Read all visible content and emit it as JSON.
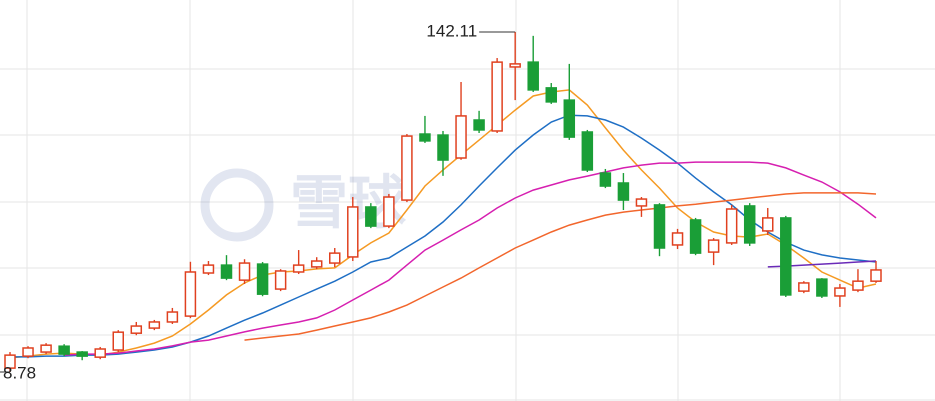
{
  "chart_data": {
    "type": "candlestick",
    "high_label": "142.11",
    "low_label": "8.78",
    "watermark": "雪球",
    "up_color": "#e0401f",
    "down_color": "#1a9e37",
    "open": [
      10.3,
      15.0,
      16.6,
      18.9,
      16.6,
      14.6,
      17.4,
      24.0,
      26.0,
      28.4,
      30.7,
      47.6,
      50.7,
      44.8,
      51.1,
      41.3,
      48.0,
      50.0,
      51.5,
      53.9,
      73.5,
      66.0,
      76.2,
      102.1,
      101.7,
      92.7,
      107.6,
      103.3,
      128.4,
      130.3,
      120.2,
      115.4,
      102.9,
      86.8,
      82.9,
      73.9,
      74.3,
      58.6,
      68.4,
      55.8,
      59.4,
      73.9,
      64.1,
      69.2,
      40.5,
      45.2,
      38.6,
      40.9,
      44.4
    ],
    "close": [
      15.4,
      18.2,
      19.3,
      15.8,
      15.0,
      17.8,
      24.4,
      26.8,
      28.4,
      32.3,
      48.0,
      50.7,
      45.6,
      51.5,
      39.3,
      48.4,
      50.7,
      52.3,
      55.4,
      73.5,
      66.0,
      77.4,
      101.3,
      99.4,
      91.9,
      109.2,
      103.7,
      130.3,
      129.6,
      119.4,
      114.7,
      100.9,
      88.0,
      81.7,
      76.2,
      76.6,
      57.4,
      63.3,
      55.4,
      60.5,
      72.7,
      59.4,
      69.2,
      39.0,
      43.7,
      38.6,
      41.7,
      44.4,
      48.8
    ],
    "high": [
      16.6,
      18.9,
      20.1,
      19.7,
      17.0,
      18.6,
      25.2,
      28.4,
      29.2,
      33.9,
      52.0,
      52.3,
      54.6,
      53.0,
      51.9,
      49.1,
      56.6,
      53.8,
      57.4,
      77.4,
      75.0,
      78.6,
      102.1,
      109.2,
      103.3,
      122.5,
      111.2,
      131.9,
      142.11,
      140.6,
      122.1,
      129.6,
      103.7,
      88.4,
      86.8,
      77.4,
      75.0,
      64.9,
      69.2,
      61.3,
      74.3,
      75.0,
      73.1,
      70.0,
      44.4,
      45.6,
      43.3,
      49.1,
      52.3
    ],
    "low": [
      8.78,
      14.2,
      15.8,
      15.0,
      13.4,
      13.8,
      16.6,
      23.2,
      25.2,
      27.6,
      29.9,
      46.8,
      44.8,
      43.3,
      38.5,
      40.5,
      47.2,
      49.1,
      49.9,
      52.3,
      65.2,
      65.2,
      75.4,
      98.6,
      85.7,
      92.0,
      102.5,
      102.5,
      115.4,
      118.6,
      113.9,
      99.8,
      87.2,
      80.9,
      72.3,
      69.6,
      54.2,
      57.0,
      54.6,
      50.7,
      58.6,
      58.2,
      62.5,
      38.2,
      39.7,
      37.8,
      34.3,
      40.1,
      43.7
    ],
    "series": [
      {
        "color": "#f59a23",
        "values": [
          14.3,
          15.0,
          15.8,
          16.2,
          15.8,
          15.4,
          16.6,
          18.2,
          20.1,
          22.9,
          27.6,
          33.1,
          39.0,
          43.7,
          46.8,
          48.0,
          48.4,
          49.2,
          49.6,
          54.7,
          59.4,
          63.3,
          72.3,
          81.7,
          88.0,
          93.9,
          99.7,
          105.6,
          111.5,
          117.0,
          118.6,
          119.4,
          113.5,
          104.5,
          95.8,
          88.0,
          80.9,
          73.1,
          67.6,
          63.7,
          62.1,
          61.7,
          62.9,
          58.6,
          53.5,
          48.0,
          44.8,
          41.7,
          43.3
        ]
      },
      {
        "color": "#1f6fc5",
        "values": [
          14.7,
          14.7,
          15.0,
          15.0,
          15.4,
          15.4,
          15.8,
          16.6,
          17.4,
          18.6,
          20.5,
          22.9,
          26.0,
          29.1,
          31.9,
          35.0,
          38.2,
          41.3,
          44.4,
          48.0,
          51.9,
          53.5,
          57.8,
          62.1,
          67.6,
          74.3,
          81.7,
          88.8,
          95.8,
          101.7,
          106.8,
          109.5,
          109.2,
          107.6,
          104.8,
          100.5,
          95.8,
          90.7,
          84.8,
          79.4,
          74.3,
          68.4,
          63.7,
          59.7,
          56.6,
          54.7,
          53.5,
          52.7,
          51.9
        ]
      },
      {
        "color": "#d61fb0",
        "values": [
          null,
          null,
          null,
          15.4,
          15.8,
          15.8,
          16.2,
          17.0,
          17.8,
          19.0,
          20.5,
          21.3,
          22.9,
          24.5,
          26.0,
          27.2,
          28.4,
          30.0,
          33.1,
          37.0,
          40.9,
          44.8,
          50.7,
          56.6,
          60.5,
          64.5,
          68.4,
          73.1,
          77.0,
          80.1,
          82.1,
          84.1,
          85.6,
          87.2,
          88.8,
          89.9,
          90.7,
          90.7,
          91.1,
          91.1,
          91.1,
          91.1,
          90.7,
          88.8,
          86.0,
          83.3,
          79.4,
          74.6,
          69.2
        ]
      },
      {
        "color": "#f2662c",
        "values": [
          null,
          null,
          null,
          null,
          null,
          null,
          null,
          null,
          null,
          null,
          null,
          null,
          null,
          21.3,
          22.1,
          22.9,
          23.7,
          25.2,
          26.8,
          28.4,
          30.0,
          32.3,
          35.0,
          38.6,
          42.1,
          45.6,
          49.6,
          53.5,
          57.4,
          60.5,
          63.7,
          66.4,
          68.4,
          70.3,
          71.5,
          72.3,
          73.1,
          73.9,
          74.6,
          75.4,
          76.2,
          77.0,
          77.8,
          78.6,
          79.0,
          79.0,
          79.0,
          79.0,
          78.6
        ]
      },
      {
        "color": "#6a2bb8",
        "values": [
          null,
          null,
          null,
          null,
          null,
          null,
          null,
          null,
          null,
          null,
          null,
          null,
          null,
          null,
          null,
          null,
          null,
          null,
          null,
          null,
          null,
          null,
          null,
          null,
          null,
          null,
          null,
          null,
          null,
          null,
          null,
          null,
          null,
          null,
          null,
          null,
          null,
          null,
          null,
          null,
          null,
          null,
          50.0,
          50.3,
          50.7,
          51.1,
          51.5,
          51.9,
          52.3
        ]
      }
    ]
  }
}
